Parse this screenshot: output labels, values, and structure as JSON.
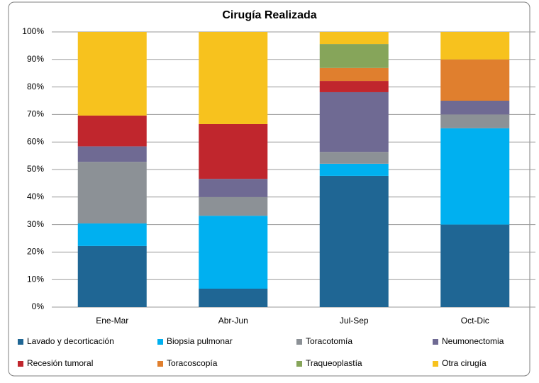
{
  "chart_data": {
    "type": "stacked_bar",
    "title": "Cirugía Realizada",
    "categories": [
      "Ene-Mar",
      "Abr-Jun",
      "Jul-Sep",
      "Oct-Dic"
    ],
    "series": [
      {
        "name": "Lavado y decorticación",
        "color": "#1f6694",
        "values": [
          22.2,
          6.7,
          47.7,
          30
        ]
      },
      {
        "name": "Biopsia pulmonar",
        "color": "#00b0f0",
        "values": [
          8.2,
          26.5,
          4.4,
          35
        ]
      },
      {
        "name": "Toracotomía",
        "color": "#8c9196",
        "values": [
          22.4,
          6.8,
          4.3,
          5
        ]
      },
      {
        "name": "Neumonectomia",
        "color": "#6f6a93",
        "values": [
          5.6,
          6.6,
          21.7,
          5
        ]
      },
      {
        "name": "Recesión tumoral",
        "color": "#c0262d",
        "values": [
          11.2,
          19.9,
          4.1,
          0
        ]
      },
      {
        "name": "Toracoscopía",
        "color": "#e07f2e",
        "values": [
          0,
          0,
          4.7,
          15
        ]
      },
      {
        "name": "Traqueoplastía",
        "color": "#86a55a",
        "values": [
          0,
          0,
          8.7,
          0
        ]
      },
      {
        "name": "Otra cirugía",
        "color": "#f7c21e",
        "values": [
          30.4,
          33.5,
          4.4,
          10
        ]
      }
    ],
    "ylim": [
      0,
      100
    ],
    "yticks": [
      {
        "value": 0,
        "label": "0%"
      },
      {
        "value": 10,
        "label": "10%"
      },
      {
        "value": 20,
        "label": "20%"
      },
      {
        "value": 30,
        "label": "30%"
      },
      {
        "value": 40,
        "label": "40%"
      },
      {
        "value": 50,
        "label": "50%"
      },
      {
        "value": 60,
        "label": "60%"
      },
      {
        "value": 70,
        "label": "70%"
      },
      {
        "value": 80,
        "label": "80%"
      },
      {
        "value": 90,
        "label": "90%"
      },
      {
        "value": 100,
        "label": "100%"
      }
    ],
    "grid": true,
    "legend": "bottom"
  }
}
